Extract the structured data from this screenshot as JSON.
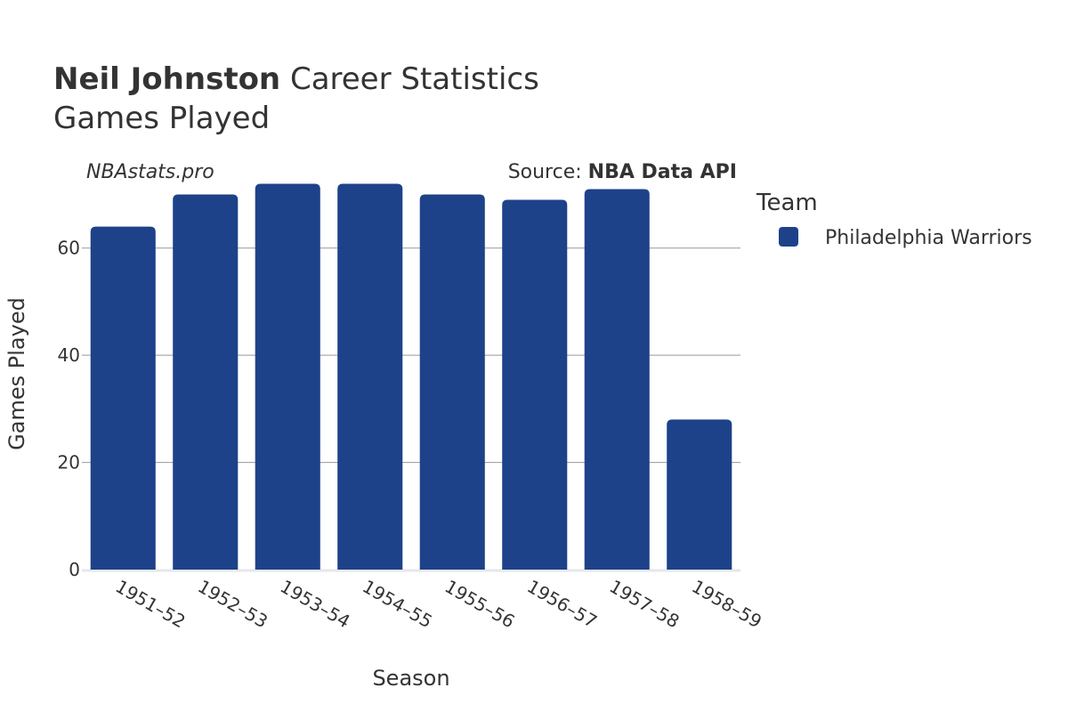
{
  "chart_data": {
    "type": "bar",
    "title_bold": "Neil Johnston",
    "title_rest": "Career Statistics",
    "subtitle": "Games Played",
    "watermark": "NBAstats.pro",
    "source_prefix": "Source: ",
    "source_name": "NBA Data API",
    "xlabel": "Season",
    "ylabel": "Games Played",
    "categories": [
      "1951–52",
      "1952–53",
      "1953–54",
      "1954–55",
      "1955–56",
      "1956–57",
      "1957–58",
      "1958–59"
    ],
    "series": [
      {
        "name": "Philadelphia Warriors",
        "color": "#1d4289",
        "values": [
          64,
          70,
          72,
          72,
          70,
          69,
          71,
          28
        ]
      }
    ],
    "ylim": [
      0,
      76.4
    ],
    "yticks": [
      0,
      20,
      40,
      60
    ],
    "grid": true,
    "legend": {
      "title": "Team",
      "placement": "right"
    }
  }
}
